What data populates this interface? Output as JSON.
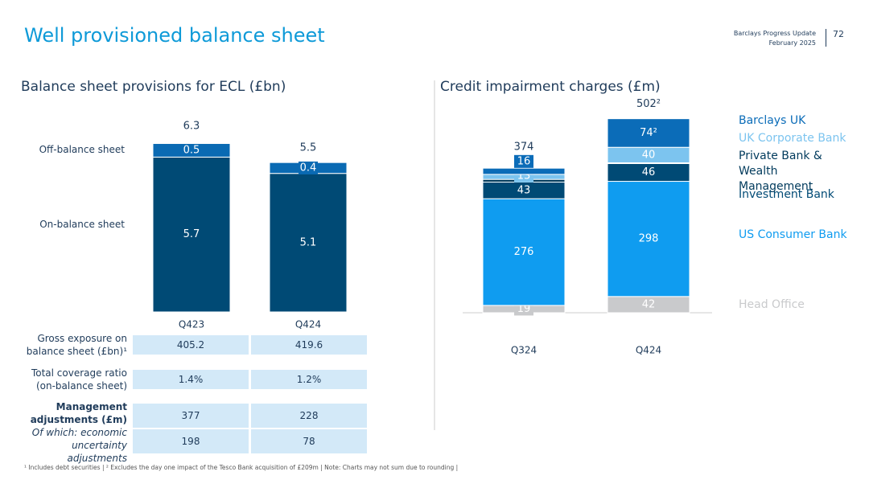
{
  "header": {
    "title": "Well provisioned balance sheet",
    "report": "Barclays Progress Update",
    "date": "February 2025",
    "page": "72"
  },
  "chart_data": [
    {
      "type": "stacked-bar",
      "title": "Balance sheet provisions for ECL (£bn)",
      "categories": [
        "Q423",
        "Q424"
      ],
      "series": [
        {
          "name": "On-balance sheet",
          "color": "#004a75",
          "values": [
            5.7,
            5.1
          ]
        },
        {
          "name": "Off-balance sheet",
          "color": "#0a6ab3",
          "values": [
            0.5,
            0.4
          ]
        }
      ],
      "totals": [
        6.3,
        5.5
      ],
      "ylim": [
        0,
        6.6
      ]
    },
    {
      "type": "stacked-bar",
      "title": "Credit impairment charges (£m)",
      "categories": [
        "Q324",
        "Q424"
      ],
      "series": [
        {
          "name": "Head Office",
          "color": "#c9cacc",
          "values": [
            19,
            42
          ]
        },
        {
          "name": "US Consumer Bank",
          "color": "#0f9cf0",
          "values": [
            276,
            298
          ]
        },
        {
          "name": "Investment Bank",
          "color": "#004a75",
          "values": [
            43,
            46
          ]
        },
        {
          "name": "Private Bank & Wealth Management",
          "color": "#003a5c",
          "values": [
            7,
            2
          ],
          "value_labels": [
            null,
            null
          ]
        },
        {
          "name": "UK Corporate Bank",
          "color": "#7cc4ef",
          "values": [
            13,
            40
          ]
        },
        {
          "name": "Barclays UK",
          "color": "#0b6cb8",
          "values": [
            16,
            74
          ],
          "value_labels": [
            "16",
            "74²"
          ]
        }
      ],
      "totals": [
        374,
        502
      ],
      "total_labels": [
        "374",
        "502²"
      ],
      "ylim": [
        0,
        520
      ]
    }
  ],
  "table": {
    "rows": [
      {
        "label": "Gross exposure on balance sheet (£bn)¹",
        "values": [
          "405.2",
          "419.6"
        ]
      },
      {
        "label": "Total coverage ratio (on-balance sheet)",
        "values": [
          "1.4%",
          "1.2%"
        ]
      },
      {
        "label": "Management adjustments (£m)",
        "values": [
          "377",
          "228"
        ]
      },
      {
        "label": "Of which: economic uncertainty adjustments",
        "values": [
          "198",
          "78"
        ]
      }
    ]
  },
  "footnote": "¹ Includes debt securities | ² Excludes the day one impact of the Tesco Bank acquisition of £209m | Note: Charts may not sum due to rounding |"
}
